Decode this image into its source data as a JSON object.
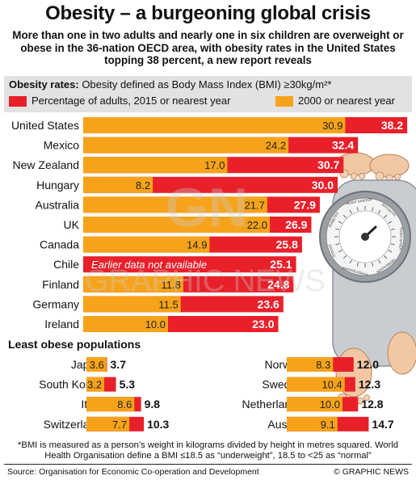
{
  "title": "Obesity – a burgeoning global crisis",
  "subtitle": "More than one in two adults and nearly one in six children are overweight or obese in the 36-nation OECD area, with obesity rates in the United States topping 38 percent, a new report reveals",
  "definition": {
    "bold": "Obesity rates:",
    "text": " Obesity defined as Body Mass Index (BMI) ≥30kg/m²*"
  },
  "legend": [
    {
      "label": "Percentage of adults, 2015 or nearest year",
      "color": "#e8202a"
    },
    {
      "label": "2000 or nearest year",
      "color": "#f6a31b"
    }
  ],
  "colors": {
    "red": "#e8202a",
    "orange": "#f6a31b"
  },
  "chart_data": [
    {
      "type": "bar",
      "title": "",
      "series": [
        {
          "name": "Percentage of adults, 2015 or nearest year",
          "values": [
            38.2,
            32.4,
            30.7,
            30.0,
            27.9,
            26.9,
            25.8,
            25.1,
            24.8,
            23.6,
            23.0
          ]
        },
        {
          "name": "2000 or nearest year",
          "values": [
            30.9,
            24.2,
            17.0,
            8.2,
            21.7,
            22.0,
            14.9,
            null,
            11.8,
            11.5,
            10.0
          ]
        }
      ],
      "categories": [
        "United States",
        "Mexico",
        "New Zealand",
        "Hungary",
        "Australia",
        "UK",
        "Canada",
        "Chile",
        "Finland",
        "Germany",
        "Ireland"
      ],
      "annotations": [
        "Earlier data not available"
      ],
      "orientation": "horizontal"
    },
    {
      "type": "bar",
      "title": "Least obese populations",
      "categories": [
        "Japan",
        "South Korea",
        "Italy",
        "Switzerland"
      ],
      "series": [
        {
          "name": "Percentage of adults, 2015 or nearest year",
          "values": [
            3.7,
            5.3,
            9.8,
            10.3
          ]
        },
        {
          "name": "2000 or nearest year",
          "values": [
            3.6,
            3.2,
            8.6,
            7.7
          ]
        }
      ],
      "orientation": "horizontal"
    },
    {
      "type": "bar",
      "title": "Least obese populations",
      "categories": [
        "Norway",
        "Sweden",
        "Netherlands",
        "Austria"
      ],
      "series": [
        {
          "name": "Percentage of adults, 2015 or nearest year",
          "values": [
            12.0,
            12.3,
            12.8,
            14.7
          ]
        },
        {
          "name": "2000 or nearest year",
          "values": [
            8.3,
            10.4,
            10.0,
            9.1
          ]
        }
      ],
      "orientation": "horizontal"
    }
  ],
  "section2_title": "Least obese populations",
  "footnote": "*BMI is measured as a person’s weight in kilograms divided by height in metres squared. World Health Organisation define a BMI ≤18.5 as “underweight”, 18.5 to <25 as “normal”",
  "source": "Source: Organisation for Economic Co-operation and Development",
  "credit": "© GRAPHIC NEWS",
  "illustration": {
    "dial_labels": [
      "HEART DISEASE",
      "ARTHRITIS",
      "SLEEP APNEA",
      "DEPRESSION",
      "HYPERTENSION",
      "STROKE",
      "DIABETES"
    ]
  },
  "watermark": {
    "logo": "GN",
    "text": "GRAPHIC NEWS"
  }
}
